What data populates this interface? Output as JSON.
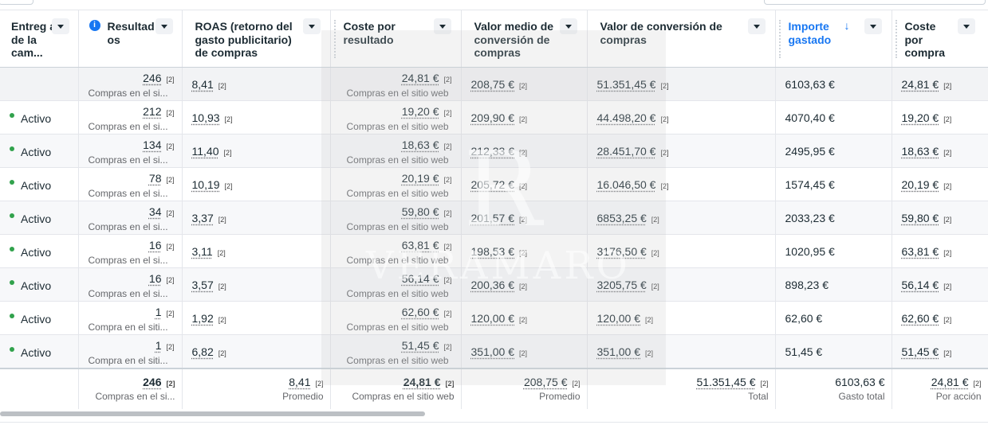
{
  "columns": [
    {
      "label": "Entreg a de la cam..."
    },
    {
      "label": "Resultad os"
    },
    {
      "label": "ROAS (retorno del gasto publicitario) de compras"
    },
    {
      "label": "Coste por resultado"
    },
    {
      "label": "Valor medio de conversión de compras"
    },
    {
      "label": "Valor de conversión de compras"
    },
    {
      "label": "Importe gastado"
    },
    {
      "label": "Coste por compra"
    }
  ],
  "ref": "[2]",
  "summary_row": {
    "results": "246",
    "results_sub": "Compras en el si...",
    "roas": "8,41",
    "cost_per_result": "24,81 €",
    "cost_sub": "Compras en el sitio web",
    "avg_value": "208,75 €",
    "conv_value": "51.351,45 €",
    "spent": "6103,63 €",
    "cost_per_purchase": "24,81 €"
  },
  "rows": [
    {
      "status": "Activo",
      "results": "212",
      "results_sub": "Compras en el si...",
      "roas": "10,93",
      "cost_per_result": "19,20 €",
      "cost_sub": "Compras en el sitio web",
      "avg_value": "209,90 €",
      "conv_value": "44.498,20 €",
      "spent": "4070,40 €",
      "cost_per_purchase": "19,20 €"
    },
    {
      "status": "Activo",
      "results": "134",
      "results_sub": "Compras en el si...",
      "roas": "11,40",
      "cost_per_result": "18,63 €",
      "cost_sub": "Compras en el sitio web",
      "avg_value": "212,33 €",
      "conv_value": "28.451,70 €",
      "spent": "2495,95 €",
      "cost_per_purchase": "18,63 €"
    },
    {
      "status": "Activo",
      "results": "78",
      "results_sub": "Compras en el si...",
      "roas": "10,19",
      "cost_per_result": "20,19 €",
      "cost_sub": "Compras en el sitio web",
      "avg_value": "205,72 €",
      "conv_value": "16.046,50 €",
      "spent": "1574,45 €",
      "cost_per_purchase": "20,19 €"
    },
    {
      "status": "Activo",
      "results": "34",
      "results_sub": "Compras en el si...",
      "roas": "3,37",
      "cost_per_result": "59,80 €",
      "cost_sub": "Compras en el sitio web",
      "avg_value": "201,57 €",
      "conv_value": "6853,25 €",
      "spent": "2033,23 €",
      "cost_per_purchase": "59,80 €"
    },
    {
      "status": "Activo",
      "results": "16",
      "results_sub": "Compras en el si...",
      "roas": "3,11",
      "cost_per_result": "63,81 €",
      "cost_sub": "Compras en el sitio web",
      "avg_value": "198,53 €",
      "conv_value": "3176,50 €",
      "spent": "1020,95 €",
      "cost_per_purchase": "63,81 €"
    },
    {
      "status": "Activo",
      "results": "16",
      "results_sub": "Compras en el si...",
      "roas": "3,57",
      "cost_per_result": "56,14 €",
      "cost_sub": "Compras en el sitio web",
      "avg_value": "200,36 €",
      "conv_value": "3205,75 €",
      "spent": "898,23 €",
      "cost_per_purchase": "56,14 €"
    },
    {
      "status": "Activo",
      "results": "1",
      "results_sub": "Compra en el siti...",
      "roas": "1,92",
      "cost_per_result": "62,60 €",
      "cost_sub": "Compras en el sitio web",
      "avg_value": "120,00 €",
      "conv_value": "120,00 €",
      "spent": "62,60 €",
      "cost_per_purchase": "62,60 €"
    },
    {
      "status": "Activo",
      "results": "1",
      "results_sub": "Compra en el siti...",
      "roas": "6,82",
      "cost_per_result": "51,45 €",
      "cost_sub": "Compras en el sitio web",
      "avg_value": "351,00 €",
      "conv_value": "351,00 €",
      "spent": "51,45 €",
      "cost_per_purchase": "51,45 €"
    }
  ],
  "footer": {
    "results": "246",
    "results_sub": "Compras en el si...",
    "roas": "8,41",
    "roas_sub": "Promedio",
    "cost_per_result": "24,81 €",
    "cost_sub": "Compras en el sitio web",
    "avg_value": "208,75 €",
    "avg_sub": "Promedio",
    "conv_value": "51.351,45 €",
    "conv_sub": "Total",
    "spent": "6103,63 €",
    "spent_sub": "Gasto total",
    "cost_per_purchase": "24,81 €",
    "cpp_sub": "Por acción"
  },
  "watermark": {
    "text": "VERAMARO",
    "logo": "R"
  },
  "colors": {
    "accent": "#1877f2",
    "active": "#31a24c"
  }
}
